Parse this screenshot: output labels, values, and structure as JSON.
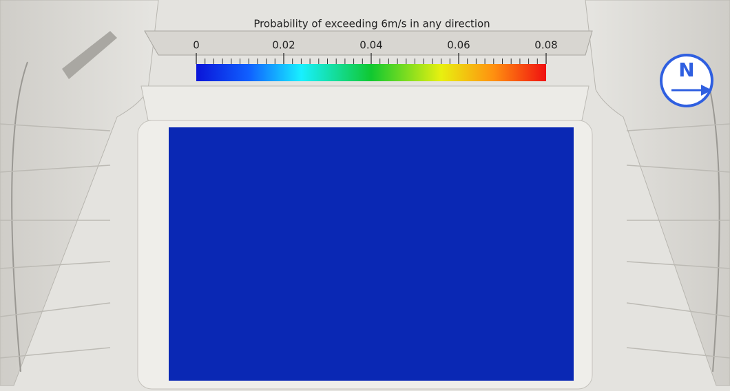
{
  "colorbar": {
    "title": "Probability of exceeding 6m/s in any direction",
    "range": [
      0,
      0.08
    ],
    "ticks": [
      0,
      0.02,
      0.04,
      0.06,
      0.08
    ]
  },
  "compass": {
    "label": "N"
  }
}
